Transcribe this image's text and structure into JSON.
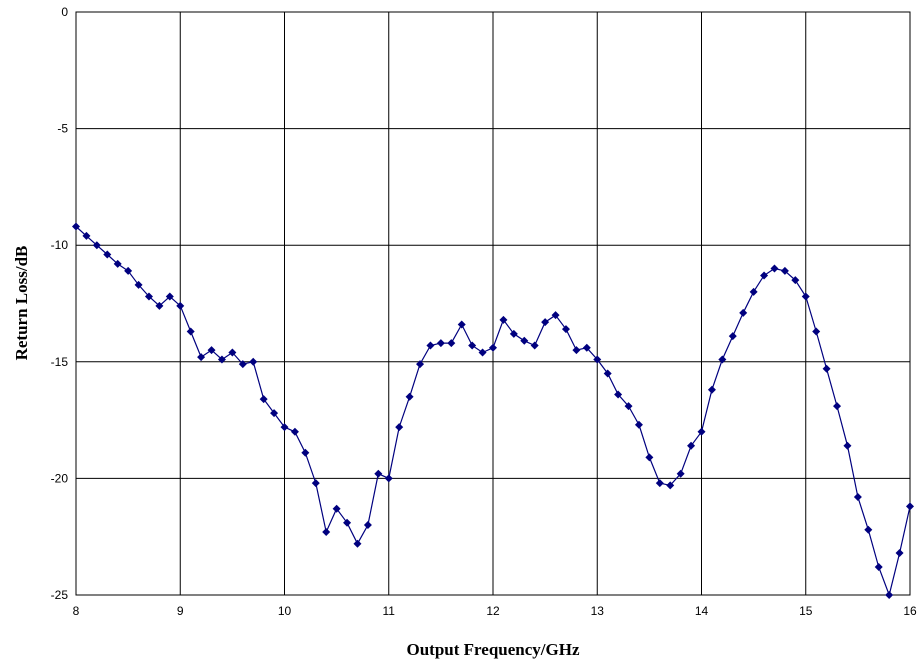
{
  "chart_data": {
    "type": "line",
    "title": "",
    "xlabel": "Output Frequency/GHz",
    "ylabel": "Return Loss/dB",
    "xlim": [
      8,
      16
    ],
    "ylim": [
      -25,
      0
    ],
    "x_ticks": [
      "8",
      "9",
      "10",
      "11",
      "12",
      "13",
      "14",
      "15",
      "16"
    ],
    "y_ticks": [
      "0",
      "-5",
      "-10",
      "-15",
      "-20",
      "-25"
    ],
    "grid": true,
    "legend": "none",
    "series": [
      {
        "color": "#00007f",
        "marker": "diamond",
        "x": [
          8.0,
          8.1,
          8.2,
          8.3,
          8.4,
          8.5,
          8.6,
          8.7,
          8.8,
          8.9,
          9.0,
          9.1,
          9.2,
          9.3,
          9.4,
          9.5,
          9.6,
          9.7,
          9.8,
          9.9,
          10.0,
          10.1,
          10.2,
          10.3,
          10.4,
          10.5,
          10.6,
          10.7,
          10.8,
          10.9,
          11.0,
          11.1,
          11.2,
          11.3,
          11.4,
          11.5,
          11.6,
          11.7,
          11.8,
          11.9,
          12.0,
          12.1,
          12.2,
          12.3,
          12.4,
          12.5,
          12.6,
          12.7,
          12.8,
          12.9,
          13.0,
          13.1,
          13.2,
          13.3,
          13.4,
          13.5,
          13.6,
          13.7,
          13.8,
          13.9,
          14.0,
          14.1,
          14.2,
          14.3,
          14.4,
          14.5,
          14.6,
          14.7,
          14.8,
          14.9,
          15.0,
          15.1,
          15.2,
          15.3,
          15.4,
          15.5,
          15.6,
          15.7,
          15.8,
          15.9,
          16.0
        ],
        "y": [
          -9.2,
          -9.6,
          -10.0,
          -10.4,
          -10.8,
          -11.1,
          -11.7,
          -12.2,
          -12.6,
          -12.2,
          -12.6,
          -13.7,
          -14.8,
          -14.5,
          -14.9,
          -14.6,
          -15.1,
          -15.0,
          -16.6,
          -17.2,
          -17.8,
          -18.0,
          -18.9,
          -20.2,
          -22.3,
          -21.3,
          -21.9,
          -22.8,
          -22.0,
          -19.8,
          -20.0,
          -17.8,
          -16.5,
          -15.1,
          -14.3,
          -14.2,
          -14.2,
          -13.4,
          -14.3,
          -14.6,
          -14.4,
          -13.2,
          -13.8,
          -14.1,
          -14.3,
          -13.3,
          -13.0,
          -13.6,
          -14.5,
          -14.4,
          -14.9,
          -15.5,
          -16.4,
          -16.9,
          -17.7,
          -19.1,
          -20.2,
          -20.3,
          -19.8,
          -18.6,
          -18.0,
          -16.2,
          -14.9,
          -13.9,
          -12.9,
          -12.0,
          -11.3,
          -11.0,
          -11.1,
          -11.5,
          -12.2,
          -13.7,
          -15.3,
          -16.9,
          -18.6,
          -20.8,
          -22.2,
          -23.8,
          -25.0,
          -23.2,
          -21.2
        ]
      }
    ]
  }
}
